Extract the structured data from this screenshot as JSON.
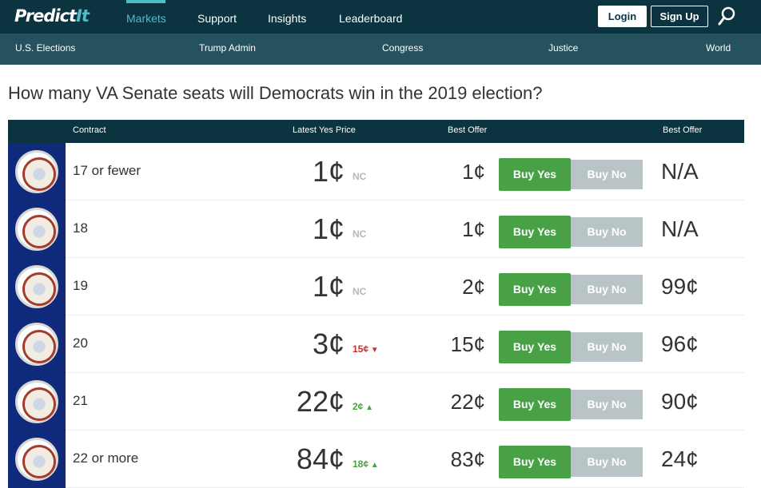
{
  "nav": {
    "logo_predict": "Predict",
    "logo_it": "It",
    "links": [
      "Markets",
      "Support",
      "Insights",
      "Leaderboard"
    ],
    "active_link": "Markets",
    "login_label": "Login",
    "signup_label": "Sign Up",
    "search_icon": "search-icon"
  },
  "subnav": {
    "links": [
      "U.S. Elections",
      "Trump Admin",
      "Congress",
      "Justice",
      "World"
    ]
  },
  "market": {
    "title": "How many VA Senate seats will Democrats win in the 2019 election?"
  },
  "table": {
    "headers": {
      "contract": "Contract",
      "latest_yes_price": "Latest Yes Price",
      "best_offer_yes": "Best Offer",
      "best_offer_no": "Best Offer"
    },
    "buy_yes_label": "Buy Yes",
    "buy_no_label": "Buy No",
    "rows": [
      {
        "name": "17 or fewer",
        "price": "1¢",
        "change": "NC",
        "change_dir": "none",
        "best_yes": "1¢",
        "best_no": "N/A"
      },
      {
        "name": "18",
        "price": "1¢",
        "change": "NC",
        "change_dir": "none",
        "best_yes": "1¢",
        "best_no": "N/A"
      },
      {
        "name": "19",
        "price": "1¢",
        "change": "NC",
        "change_dir": "none",
        "best_yes": "2¢",
        "best_no": "99¢"
      },
      {
        "name": "20",
        "price": "3¢",
        "change": "15¢",
        "change_dir": "down",
        "best_yes": "15¢",
        "best_no": "96¢"
      },
      {
        "name": "21",
        "price": "22¢",
        "change": "2¢",
        "change_dir": "up",
        "best_yes": "22¢",
        "best_no": "90¢"
      },
      {
        "name": "22 or more",
        "price": "84¢",
        "change": "18¢",
        "change_dir": "up",
        "best_yes": "83¢",
        "best_no": "24¢"
      }
    ]
  },
  "colors": {
    "nav_bg": "#0b3340",
    "subnav_bg": "#26515e",
    "accent": "#4ebdc6",
    "buy_yes": "#48a145",
    "buy_no": "#b9c4c7",
    "change_up": "#48a145",
    "change_down": "#c9302c",
    "change_none": "#b0b8bb"
  }
}
